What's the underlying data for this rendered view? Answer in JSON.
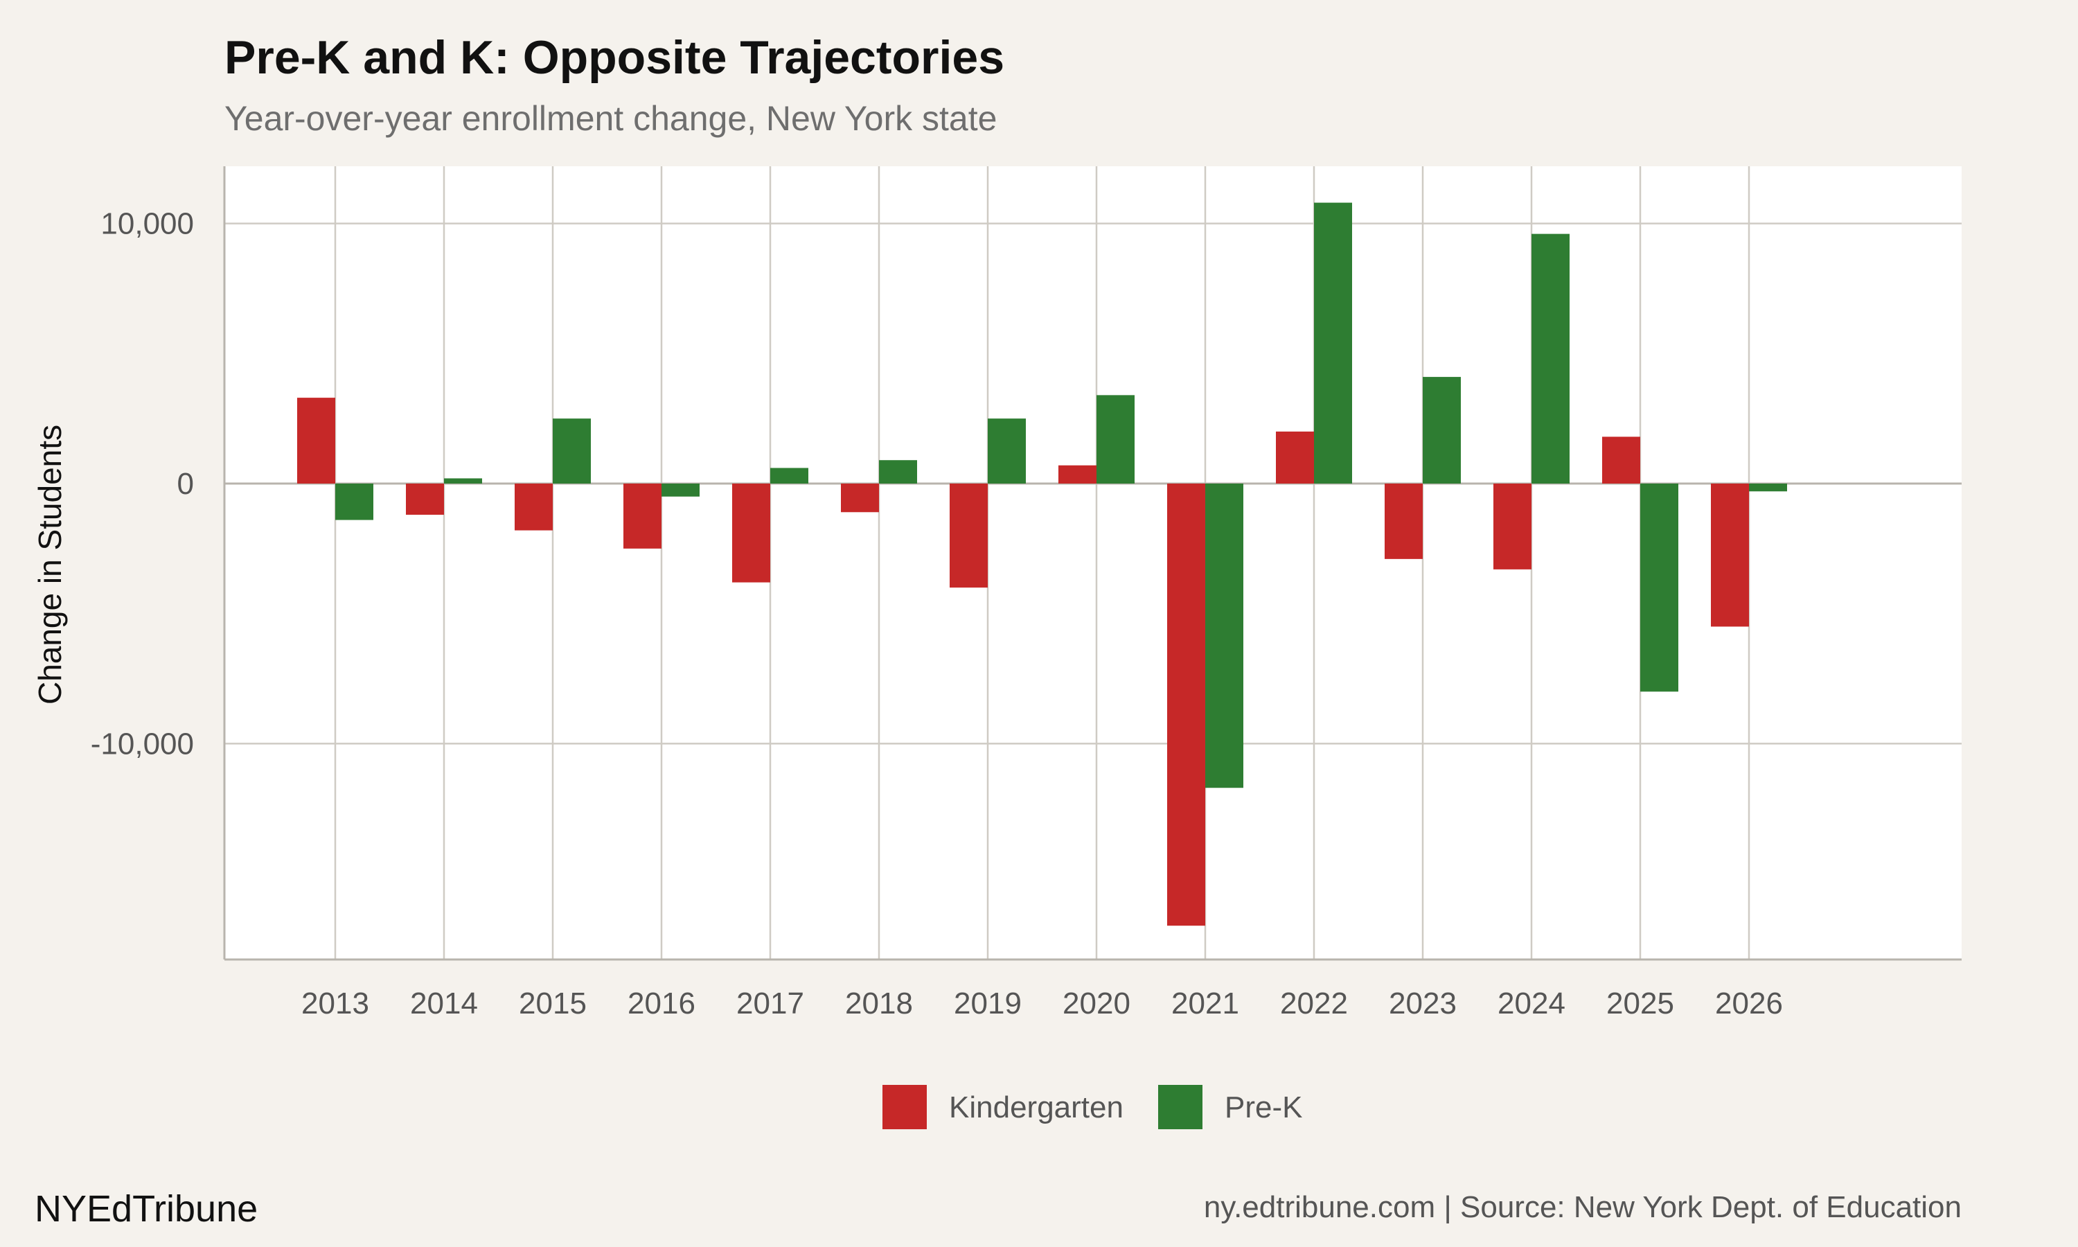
{
  "header": {
    "title": "Pre-K and K: Opposite Trajectories",
    "subtitle": "Year-over-year enrollment change, New York state"
  },
  "footer": {
    "brand": "NYEdTribune",
    "source": "ny.edtribune.com | Source: New York Dept. of Education"
  },
  "chart_data": {
    "type": "bar",
    "title": "Pre-K and K: Opposite Trajectories",
    "subtitle": "Year-over-year enrollment change, New York state",
    "xlabel": "",
    "ylabel": "Change in Students",
    "categories": [
      "2013",
      "2014",
      "2015",
      "2016",
      "2017",
      "2018",
      "2019",
      "2020",
      "2021",
      "2022",
      "2023",
      "2024",
      "2025",
      "2026"
    ],
    "series": [
      {
        "name": "Kindergarten",
        "color": "#c62828",
        "values": [
          3300,
          -1200,
          -1800,
          -2500,
          -3800,
          -1100,
          -4000,
          700,
          -17000,
          2000,
          -2900,
          -3300,
          1800,
          -5500
        ]
      },
      {
        "name": "Pre-K",
        "color": "#2e7d32",
        "values": [
          -1400,
          200,
          2500,
          -500,
          600,
          900,
          2500,
          3400,
          -11700,
          10800,
          4100,
          9600,
          -8000,
          -300
        ]
      }
    ],
    "ylim": [
      -18300,
      12200
    ],
    "yticks": [
      10000,
      0,
      -10000
    ],
    "ytick_labels": [
      "10,000",
      "0",
      "-10,000"
    ],
    "grid": true,
    "legend": "bottom",
    "panel_background": "#ffffff",
    "page_background": "#f5f2ed"
  }
}
